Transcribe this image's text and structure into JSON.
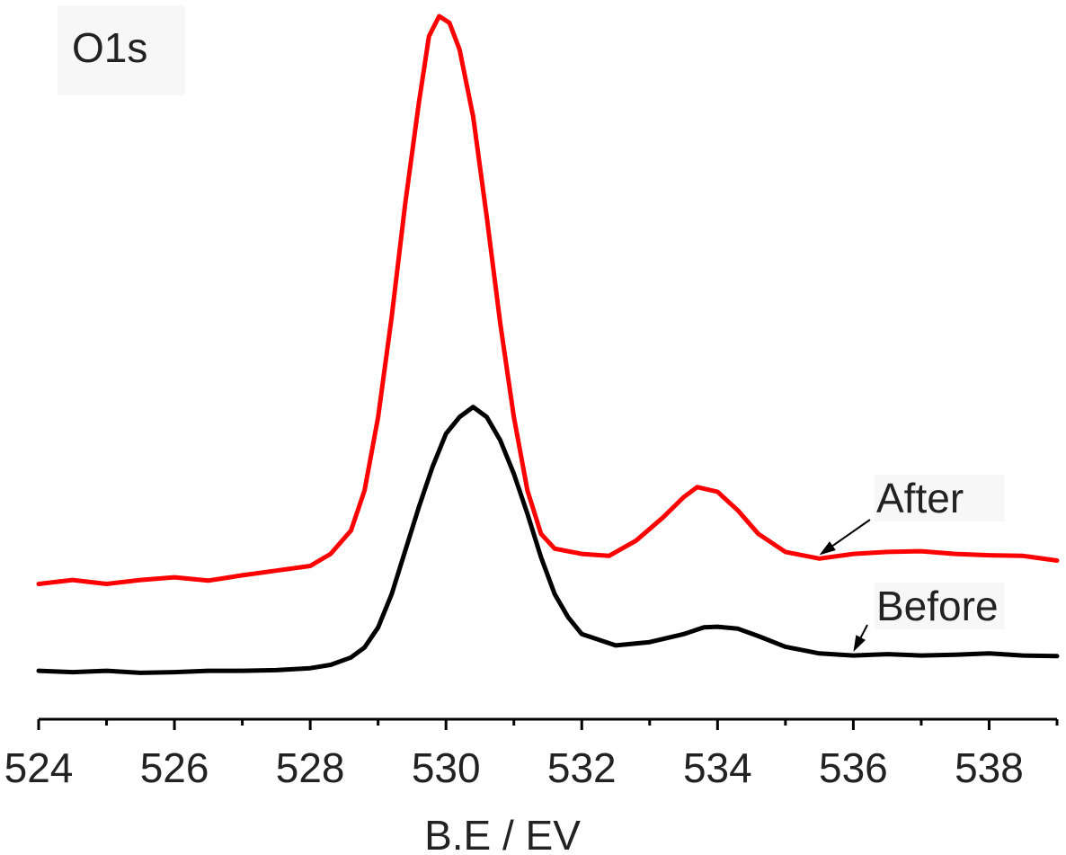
{
  "chart_data": {
    "type": "line",
    "title": "",
    "panel_label": "O1s",
    "xlabel": "B.E / EV",
    "ylabel": "",
    "xlim": [
      524,
      539
    ],
    "ylim": [
      0,
      100
    ],
    "grid": false,
    "x_ticks_major": [
      524,
      526,
      528,
      530,
      532,
      534,
      536,
      538
    ],
    "x_tick_labels": [
      "524",
      "526",
      "528",
      "530",
      "532",
      "534",
      "536",
      "538"
    ],
    "series": [
      {
        "name": "After",
        "color": "#ff0000",
        "annotation_at": 535.5,
        "points": [
          [
            524.0,
            15.0
          ],
          [
            524.5,
            15.6
          ],
          [
            525.0,
            15.0
          ],
          [
            525.5,
            15.6
          ],
          [
            526.0,
            16.0
          ],
          [
            526.5,
            15.5
          ],
          [
            527.0,
            16.3
          ],
          [
            527.5,
            17.0
          ],
          [
            528.0,
            17.7
          ],
          [
            528.3,
            19.5
          ],
          [
            528.6,
            23.0
          ],
          [
            528.8,
            29.0
          ],
          [
            529.0,
            40.0
          ],
          [
            529.2,
            55.0
          ],
          [
            529.4,
            72.0
          ],
          [
            529.6,
            87.0
          ],
          [
            529.75,
            97.0
          ],
          [
            529.9,
            100.0
          ],
          [
            530.05,
            99.0
          ],
          [
            530.2,
            95.0
          ],
          [
            530.4,
            85.0
          ],
          [
            530.6,
            70.0
          ],
          [
            530.8,
            54.0
          ],
          [
            531.0,
            40.0
          ],
          [
            531.2,
            29.0
          ],
          [
            531.4,
            22.5
          ],
          [
            531.6,
            20.3
          ],
          [
            532.0,
            19.5
          ],
          [
            532.4,
            19.2
          ],
          [
            532.8,
            21.5
          ],
          [
            533.2,
            25.0
          ],
          [
            533.5,
            28.0
          ],
          [
            533.7,
            29.5
          ],
          [
            534.0,
            28.8
          ],
          [
            534.3,
            26.0
          ],
          [
            534.6,
            22.5
          ],
          [
            535.0,
            19.8
          ],
          [
            535.5,
            18.8
          ],
          [
            536.0,
            19.5
          ],
          [
            536.5,
            19.8
          ],
          [
            537.0,
            19.9
          ],
          [
            537.5,
            19.5
          ],
          [
            538.0,
            19.3
          ],
          [
            538.5,
            19.2
          ],
          [
            539.0,
            18.5
          ]
        ]
      },
      {
        "name": "Before",
        "color": "#000000",
        "annotation_at": 536.0,
        "points": [
          [
            524.0,
            2.0
          ],
          [
            524.5,
            1.8
          ],
          [
            525.0,
            2.0
          ],
          [
            525.5,
            1.7
          ],
          [
            526.0,
            1.8
          ],
          [
            526.5,
            2.0
          ],
          [
            527.0,
            2.0
          ],
          [
            527.5,
            2.1
          ],
          [
            528.0,
            2.4
          ],
          [
            528.3,
            2.9
          ],
          [
            528.6,
            4.0
          ],
          [
            528.8,
            5.5
          ],
          [
            529.0,
            8.5
          ],
          [
            529.2,
            13.5
          ],
          [
            529.4,
            20.0
          ],
          [
            529.6,
            26.5
          ],
          [
            529.8,
            32.5
          ],
          [
            530.0,
            37.5
          ],
          [
            530.2,
            40.0
          ],
          [
            530.4,
            41.5
          ],
          [
            530.6,
            40.0
          ],
          [
            530.8,
            36.5
          ],
          [
            531.0,
            31.5
          ],
          [
            531.2,
            25.5
          ],
          [
            531.4,
            19.0
          ],
          [
            531.6,
            13.5
          ],
          [
            531.8,
            10.0
          ],
          [
            532.0,
            7.5
          ],
          [
            532.5,
            5.8
          ],
          [
            533.0,
            6.3
          ],
          [
            533.5,
            7.5
          ],
          [
            533.8,
            8.5
          ],
          [
            534.0,
            8.6
          ],
          [
            534.3,
            8.3
          ],
          [
            534.6,
            7.2
          ],
          [
            535.0,
            5.6
          ],
          [
            535.5,
            4.6
          ],
          [
            536.0,
            4.3
          ],
          [
            536.5,
            4.5
          ],
          [
            537.0,
            4.3
          ],
          [
            537.5,
            4.4
          ],
          [
            538.0,
            4.6
          ],
          [
            538.5,
            4.3
          ],
          [
            539.0,
            4.2
          ]
        ]
      }
    ]
  }
}
